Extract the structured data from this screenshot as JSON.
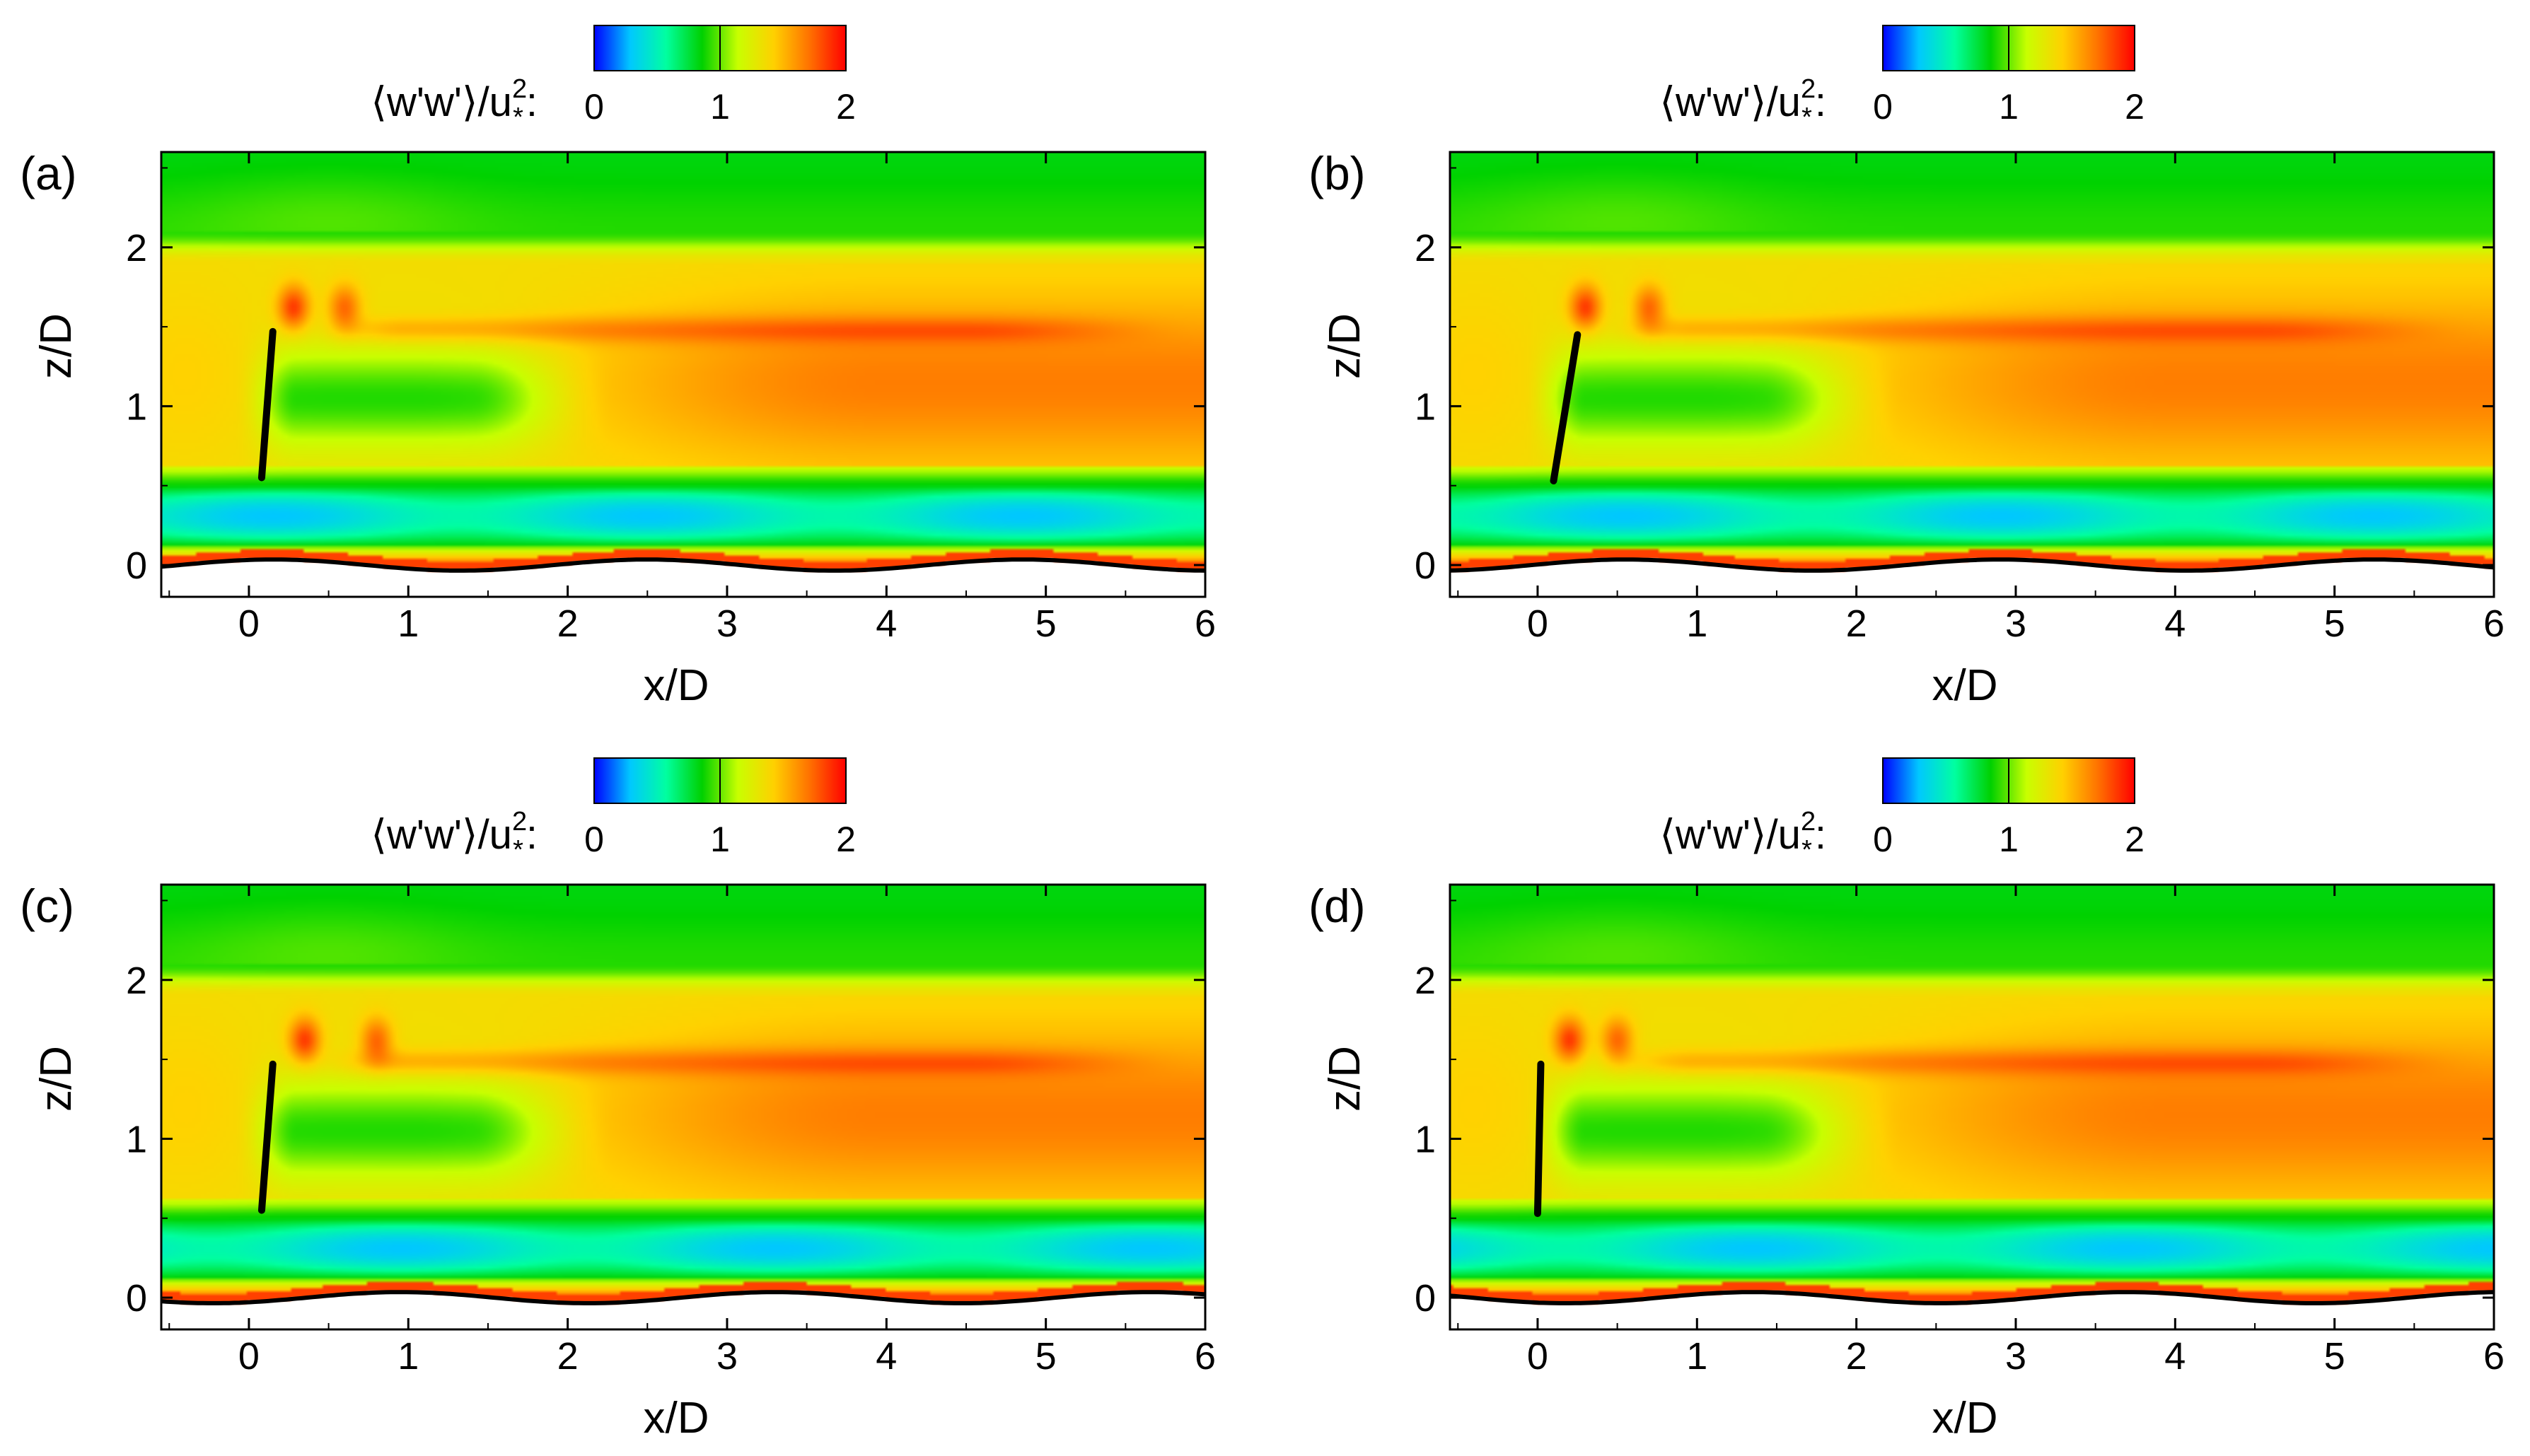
{
  "figure": {
    "panels": [
      "(a)",
      "(b)",
      "(c)",
      "(d)"
    ]
  },
  "chart_data": [
    {
      "type": "heatmap",
      "panel_label": "(a)",
      "colorbar": {
        "label_text": "⟨w'w'⟩/u",
        "label_sup": "2",
        "label_sub": "*",
        "label_colon": ":",
        "ticks": [
          "0",
          "1",
          "2"
        ],
        "range": [
          0,
          2
        ],
        "colors": [
          "#0000ff",
          "#00c8ff",
          "#00ffa0",
          "#00d000",
          "#c8ff00",
          "#ffd000",
          "#ff7000",
          "#ff0000"
        ]
      },
      "xlabel": "x/D",
      "ylabel": "z/D",
      "xlim": [
        -0.55,
        6.0
      ],
      "ylim": [
        -0.2,
        2.6
      ],
      "xticks": [
        "0",
        "1",
        "2",
        "3",
        "4",
        "5",
        "6"
      ],
      "yticks": [
        "0",
        "1",
        "2"
      ],
      "turbine_line": {
        "x0": 0.08,
        "z0": 0.55,
        "x1": 0.15,
        "z1": 1.47
      },
      "wave": {
        "amplitude": 0.035,
        "wavelength": 2.35,
        "phase": 0.15
      },
      "tip_spots": [
        0.28,
        0.6
      ]
    },
    {
      "type": "heatmap",
      "panel_label": "(b)",
      "colorbar": {
        "label_text": "⟨w'w'⟩/u",
        "label_sup": "2",
        "label_sub": "*",
        "label_colon": ":",
        "ticks": [
          "0",
          "1",
          "2"
        ],
        "range": [
          0,
          2
        ],
        "colors": [
          "#0000ff",
          "#00c8ff",
          "#00ffa0",
          "#00d000",
          "#c8ff00",
          "#ffd000",
          "#ff7000",
          "#ff0000"
        ]
      },
      "xlabel": "x/D",
      "ylabel": "z/D",
      "xlim": [
        -0.55,
        6.0
      ],
      "ylim": [
        -0.2,
        2.6
      ],
      "xticks": [
        "0",
        "1",
        "2",
        "3",
        "4",
        "5",
        "6"
      ],
      "yticks": [
        "0",
        "1",
        "2"
      ],
      "turbine_line": {
        "x0": 0.1,
        "z0": 0.53,
        "x1": 0.25,
        "z1": 1.45
      },
      "wave": {
        "amplitude": 0.035,
        "wavelength": 2.35,
        "phase": 0.55
      },
      "tip_spots": [
        0.3,
        0.7
      ]
    },
    {
      "type": "heatmap",
      "panel_label": "(c)",
      "colorbar": {
        "label_text": "⟨w'w'⟩/u",
        "label_sup": "2",
        "label_sub": "*",
        "label_colon": ":",
        "ticks": [
          "0",
          "1",
          "2"
        ],
        "range": [
          0,
          2
        ],
        "colors": [
          "#0000ff",
          "#00c8ff",
          "#00ffa0",
          "#00d000",
          "#c8ff00",
          "#ffd000",
          "#ff7000",
          "#ff0000"
        ]
      },
      "xlabel": "x/D",
      "ylabel": "z/D",
      "xlim": [
        -0.55,
        6.0
      ],
      "ylim": [
        -0.2,
        2.6
      ],
      "xticks": [
        "0",
        "1",
        "2",
        "3",
        "4",
        "5",
        "6"
      ],
      "yticks": [
        "0",
        "1",
        "2"
      ],
      "turbine_line": {
        "x0": 0.08,
        "z0": 0.55,
        "x1": 0.15,
        "z1": 1.47
      },
      "wave": {
        "amplitude": 0.035,
        "wavelength": 2.35,
        "phase": 0.95
      },
      "tip_spots": [
        0.35,
        0.8
      ]
    },
    {
      "type": "heatmap",
      "panel_label": "(d)",
      "colorbar": {
        "label_text": "⟨w'w'⟩/u",
        "label_sup": "2",
        "label_sub": "*",
        "label_colon": ":",
        "ticks": [
          "0",
          "1",
          "2"
        ],
        "range": [
          0,
          2
        ],
        "colors": [
          "#0000ff",
          "#00c8ff",
          "#00ffa0",
          "#00d000",
          "#c8ff00",
          "#ffd000",
          "#ff7000",
          "#ff0000"
        ]
      },
      "xlabel": "x/D",
      "ylabel": "z/D",
      "xlim": [
        -0.55,
        6.0
      ],
      "ylim": [
        -0.2,
        2.6
      ],
      "xticks": [
        "0",
        "1",
        "2",
        "3",
        "4",
        "5",
        "6"
      ],
      "yticks": [
        "0",
        "1",
        "2"
      ],
      "turbine_line": {
        "x0": 0.0,
        "z0": 0.53,
        "x1": 0.02,
        "z1": 1.47
      },
      "wave": {
        "amplitude": 0.035,
        "wavelength": 2.35,
        "phase": 1.35
      },
      "tip_spots": [
        0.2,
        0.5
      ]
    }
  ]
}
